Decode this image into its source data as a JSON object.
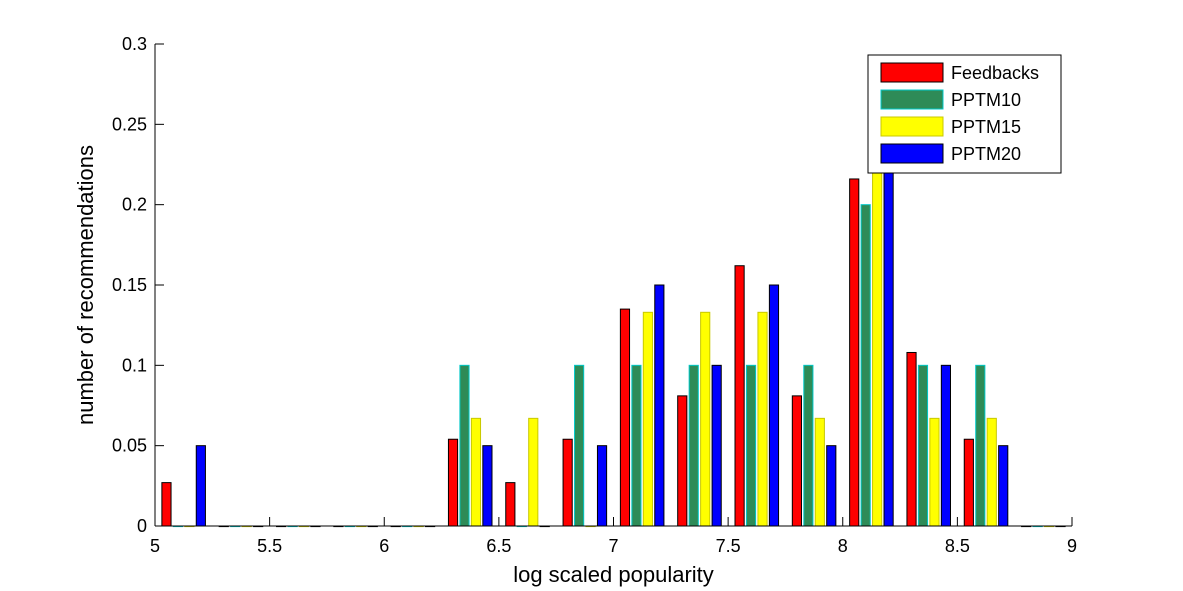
{
  "chart_data": {
    "type": "bar",
    "title": "",
    "xlabel": "log scaled popularity",
    "ylabel": "number of recommendations",
    "xlim": [
      5,
      9
    ],
    "ylim": [
      0,
      0.3
    ],
    "xticks": [
      "5",
      "5.5",
      "6",
      "6.5",
      "7",
      "7.5",
      "8",
      "8.5",
      "9"
    ],
    "yticks": [
      "0",
      "0.05",
      "0.1",
      "0.15",
      "0.2",
      "0.25",
      "0.3"
    ],
    "x": [
      5.125,
      5.375,
      5.625,
      5.875,
      6.125,
      6.375,
      6.625,
      6.875,
      7.125,
      7.375,
      7.625,
      7.875,
      8.125,
      8.375,
      8.625,
      8.875
    ],
    "series": [
      {
        "name": "Feedbacks",
        "color": "#ff0000",
        "edge": "#000000",
        "values": [
          0.027,
          0,
          0,
          0,
          0,
          0.054,
          0.027,
          0.054,
          0.135,
          0.081,
          0.162,
          0.081,
          0.216,
          0.108,
          0.054,
          0
        ]
      },
      {
        "name": "PPTM10",
        "color": "#2e8b57",
        "edge": "#00c8c8",
        "values": [
          0,
          0,
          0,
          0,
          0,
          0.1,
          0,
          0.1,
          0.1,
          0.1,
          0.1,
          0.1,
          0.2,
          0.1,
          0.1,
          0
        ]
      },
      {
        "name": "PPTM15",
        "color": "#ffff00",
        "edge": "#c8c800",
        "values": [
          0,
          0,
          0,
          0,
          0,
          0.067,
          0.067,
          0,
          0.133,
          0.133,
          0.133,
          0.067,
          0.22,
          0.067,
          0.067,
          0
        ]
      },
      {
        "name": "PPTM20",
        "color": "#0000ff",
        "edge": "#000000",
        "values": [
          0.05,
          0,
          0,
          0,
          0,
          0.05,
          0,
          0.05,
          0.15,
          0.1,
          0.15,
          0.05,
          0.22,
          0.1,
          0.05,
          0
        ]
      }
    ],
    "grid": false,
    "legend_position": "top-right"
  }
}
